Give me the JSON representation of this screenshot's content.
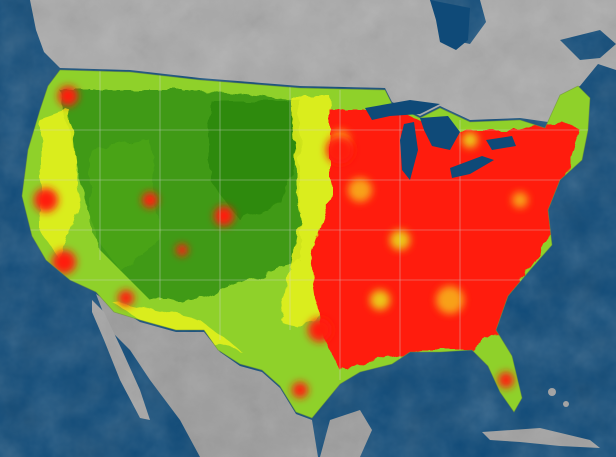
{
  "map": {
    "colors": {
      "ocean": "#0f4a78",
      "land_relief_light": "#b9b9b9",
      "land_relief_dark": "#7c7c7c",
      "state_border": "#cfcfcf",
      "density_low": "#3f9a12",
      "density_mid_low": "#8fd12a",
      "density_mid": "#e8f21b",
      "density_high": "#f7c31a",
      "density_very_high": "#ff1a0a"
    }
  }
}
